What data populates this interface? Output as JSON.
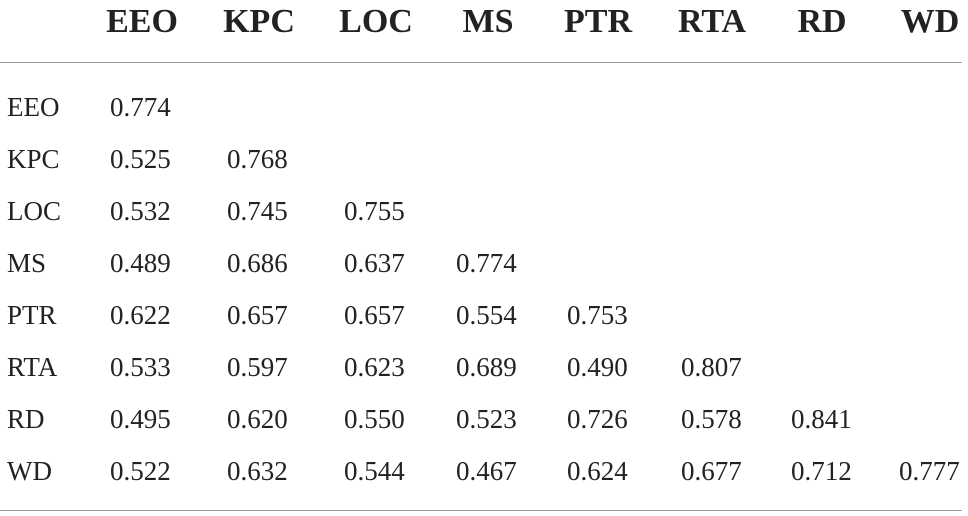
{
  "table": {
    "columns": [
      "EEO",
      "KPC",
      "LOC",
      "MS",
      "PTR",
      "RTA",
      "RD",
      "WD"
    ],
    "rows": [
      {
        "label": "EEO",
        "values": [
          "0.774"
        ]
      },
      {
        "label": "KPC",
        "values": [
          "0.525",
          "0.768"
        ]
      },
      {
        "label": "LOC",
        "values": [
          "0.532",
          "0.745",
          "0.755"
        ]
      },
      {
        "label": "MS",
        "values": [
          "0.489",
          "0.686",
          "0.637",
          "0.774"
        ]
      },
      {
        "label": "PTR",
        "values": [
          "0.622",
          "0.657",
          "0.657",
          "0.554",
          "0.753"
        ]
      },
      {
        "label": "RTA",
        "values": [
          "0.533",
          "0.597",
          "0.623",
          "0.689",
          "0.490",
          "0.807"
        ]
      },
      {
        "label": "RD",
        "values": [
          "0.495",
          "0.620",
          "0.550",
          "0.523",
          "0.726",
          "0.578",
          "0.841"
        ]
      },
      {
        "label": "WD",
        "values": [
          "0.522",
          "0.632",
          "0.544",
          "0.467",
          "0.624",
          "0.677",
          "0.712",
          "0.777"
        ]
      }
    ]
  }
}
